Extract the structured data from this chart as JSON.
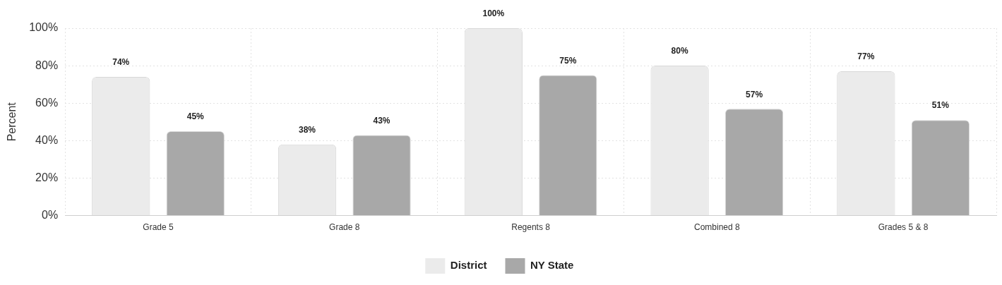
{
  "chart_data": {
    "type": "bar",
    "ylabel": "Percent",
    "categories": [
      "Grade 5",
      "Grade 8",
      "Regents 8",
      "Combined 8",
      "Grades 5 & 8"
    ],
    "series": [
      {
        "name": "District",
        "color": "#ebebeb",
        "values": [
          74,
          38,
          100,
          80,
          77
        ],
        "value_labels": [
          "74%",
          "38%",
          "100%",
          "80%",
          "77%"
        ]
      },
      {
        "name": "NY State",
        "color": "#a8a8a8",
        "values": [
          45,
          43,
          75,
          57,
          51
        ],
        "value_labels": [
          "45%",
          "43%",
          "75%",
          "57%",
          "51%"
        ]
      }
    ],
    "ylim": [
      0,
      100
    ],
    "yticks": [
      {
        "value": 0,
        "label": "0%"
      },
      {
        "value": 20,
        "label": "20%"
      },
      {
        "value": 40,
        "label": "40%"
      },
      {
        "value": 60,
        "label": "60%"
      },
      {
        "value": 80,
        "label": "80%"
      },
      {
        "value": 100,
        "label": "100%"
      }
    ],
    "grid": true,
    "legend": "bottom"
  }
}
